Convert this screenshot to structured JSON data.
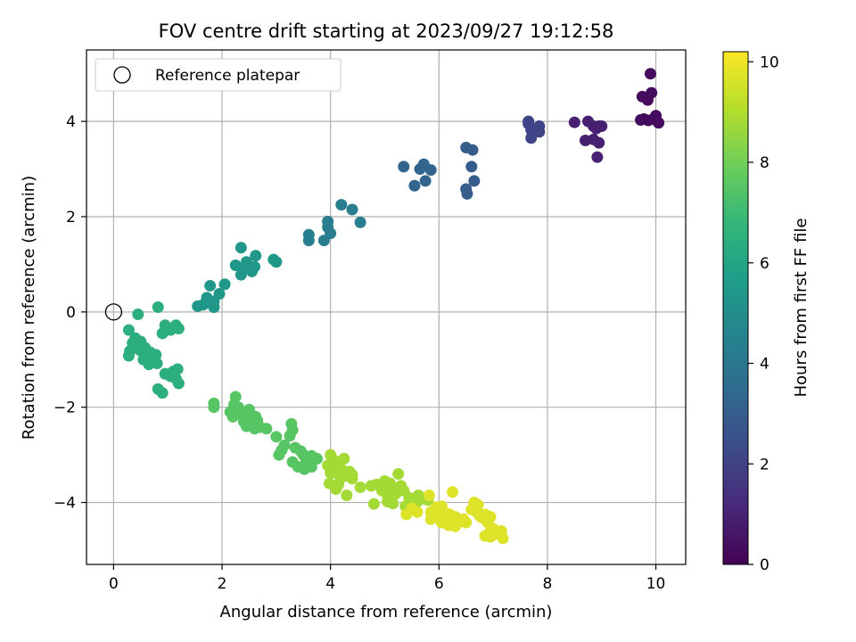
{
  "chart_data": {
    "type": "scatter",
    "title": "FOV centre drift starting at 2023/09/27 19:12:58",
    "xlabel": "Angular distance from reference (arcmin)",
    "ylabel": "Rotation from reference (arcmin)",
    "xlim": [
      -0.5,
      10.55
    ],
    "ylim": [
      -5.3,
      5.5
    ],
    "x_ticks": [
      0,
      2,
      4,
      6,
      8,
      10
    ],
    "y_ticks": [
      -4,
      -2,
      0,
      2,
      4
    ],
    "grid": true,
    "legend": {
      "placement": "top-left",
      "entries": [
        "Reference platepar"
      ]
    },
    "reference": {
      "x": 0,
      "y": 0
    },
    "colorbar": {
      "label": "Hours from first FF file",
      "range": [
        0,
        10.2
      ],
      "ticks": [
        0,
        2,
        4,
        6,
        8,
        10
      ],
      "colormap": "viridis",
      "colors": [
        "#440154",
        "#482878",
        "#3e4989",
        "#31688e",
        "#26828e",
        "#1f9e89",
        "#35b779",
        "#6ece58",
        "#b5de2b",
        "#fde725"
      ]
    },
    "series": [
      {
        "t": 0.3,
        "points": [
          [
            9.9,
            5.0
          ],
          [
            9.75,
            4.52
          ],
          [
            9.92,
            4.6
          ],
          [
            9.85,
            4.45
          ],
          [
            9.78,
            4.05
          ],
          [
            9.86,
            4.02
          ],
          [
            9.95,
            4.05
          ],
          [
            10.0,
            4.12
          ],
          [
            10.05,
            3.97
          ],
          [
            9.72,
            4.03
          ]
        ]
      },
      {
        "t": 0.9,
        "points": [
          [
            8.75,
            4.0
          ],
          [
            8.85,
            3.9
          ],
          [
            8.9,
            3.85
          ],
          [
            8.95,
            3.9
          ],
          [
            9.0,
            3.9
          ],
          [
            8.7,
            3.6
          ],
          [
            8.85,
            3.62
          ],
          [
            8.95,
            3.55
          ],
          [
            8.92,
            3.25
          ],
          [
            8.5,
            3.98
          ]
        ]
      },
      {
        "t": 2.1,
        "points": [
          [
            7.65,
            4.0
          ],
          [
            7.85,
            3.9
          ],
          [
            7.7,
            3.82
          ],
          [
            7.85,
            3.78
          ],
          [
            7.7,
            3.65
          ],
          [
            7.65,
            3.95
          ]
        ]
      },
      {
        "t": 3.0,
        "points": [
          [
            6.5,
            3.45
          ],
          [
            6.62,
            3.4
          ],
          [
            6.6,
            3.05
          ],
          [
            6.65,
            2.75
          ],
          [
            6.5,
            2.58
          ],
          [
            6.52,
            2.48
          ]
        ]
      },
      {
        "t": 3.3,
        "points": [
          [
            5.35,
            3.05
          ],
          [
            5.65,
            3.0
          ],
          [
            5.72,
            3.1
          ],
          [
            5.85,
            2.98
          ],
          [
            5.55,
            2.65
          ],
          [
            5.75,
            2.75
          ]
        ]
      },
      {
        "t": 4.3,
        "points": [
          [
            4.2,
            2.25
          ],
          [
            4.4,
            2.15
          ],
          [
            4.55,
            1.88
          ],
          [
            3.95,
            1.9
          ],
          [
            3.95,
            1.78
          ],
          [
            4.0,
            1.65
          ],
          [
            3.6,
            1.62
          ],
          [
            3.6,
            1.5
          ],
          [
            3.88,
            1.5
          ]
        ]
      },
      {
        "t": 5.4,
        "points": [
          [
            2.35,
            1.35
          ],
          [
            2.62,
            1.18
          ],
          [
            2.95,
            1.1
          ],
          [
            3.0,
            1.05
          ],
          [
            2.45,
            1.05
          ],
          [
            2.25,
            0.98
          ],
          [
            2.6,
            0.95
          ],
          [
            2.4,
            0.9
          ],
          [
            2.55,
            0.85
          ],
          [
            2.35,
            0.78
          ],
          [
            1.78,
            0.55
          ],
          [
            2.05,
            0.58
          ],
          [
            1.95,
            0.38
          ],
          [
            1.72,
            0.3
          ],
          [
            1.85,
            0.22
          ],
          [
            1.65,
            0.15
          ],
          [
            1.55,
            0.12
          ],
          [
            1.85,
            0.1
          ]
        ]
      },
      {
        "t": 6.4,
        "points": [
          [
            0.45,
            -0.05
          ],
          [
            0.82,
            0.1
          ],
          [
            0.95,
            -0.28
          ],
          [
            1.15,
            -0.28
          ],
          [
            1.2,
            -0.35
          ],
          [
            1.05,
            -0.38
          ],
          [
            0.9,
            -0.45
          ],
          [
            0.28,
            -0.38
          ],
          [
            0.4,
            -0.55
          ],
          [
            0.5,
            -0.62
          ],
          [
            0.35,
            -0.65
          ],
          [
            0.58,
            -0.75
          ],
          [
            0.48,
            -0.8
          ],
          [
            0.68,
            -0.85
          ],
          [
            0.3,
            -0.82
          ],
          [
            0.28,
            -0.92
          ],
          [
            0.6,
            -0.95
          ],
          [
            0.78,
            -0.9
          ],
          [
            0.55,
            -1.0
          ],
          [
            0.72,
            -1.02
          ],
          [
            0.8,
            -1.08
          ],
          [
            0.65,
            -1.1
          ],
          [
            1.18,
            -1.2
          ],
          [
            1.1,
            -1.25
          ],
          [
            0.95,
            -1.3
          ],
          [
            1.05,
            -1.35
          ],
          [
            1.15,
            -1.4
          ],
          [
            1.2,
            -1.5
          ],
          [
            0.82,
            -1.62
          ],
          [
            0.9,
            -1.7
          ]
        ]
      },
      {
        "t": 7.5,
        "points": [
          [
            2.25,
            -1.78
          ],
          [
            2.22,
            -1.95
          ],
          [
            1.85,
            -1.92
          ],
          [
            1.85,
            -2.0
          ],
          [
            2.3,
            -2.0
          ],
          [
            2.5,
            -2.05
          ],
          [
            2.15,
            -2.1
          ],
          [
            2.35,
            -2.15
          ],
          [
            2.2,
            -2.2
          ],
          [
            2.62,
            -2.2
          ],
          [
            2.55,
            -2.22
          ],
          [
            2.65,
            -2.28
          ],
          [
            2.4,
            -2.3
          ],
          [
            2.5,
            -2.35
          ],
          [
            2.7,
            -2.42
          ],
          [
            2.6,
            -2.45
          ],
          [
            2.45,
            -2.4
          ],
          [
            2.82,
            -2.45
          ],
          [
            3.0,
            -2.62
          ],
          [
            3.28,
            -2.35
          ],
          [
            3.3,
            -2.48
          ],
          [
            3.25,
            -2.6
          ],
          [
            3.15,
            -2.8
          ],
          [
            3.35,
            -2.85
          ],
          [
            3.45,
            -2.92
          ],
          [
            3.1,
            -2.9
          ],
          [
            3.05,
            -3.0
          ],
          [
            3.5,
            -3.0
          ],
          [
            3.65,
            -3.02
          ],
          [
            3.75,
            -3.08
          ],
          [
            3.3,
            -3.15
          ],
          [
            3.55,
            -3.15
          ],
          [
            3.4,
            -3.25
          ],
          [
            3.65,
            -3.25
          ],
          [
            3.52,
            -3.3
          ]
        ]
      },
      {
        "t": 8.8,
        "points": [
          [
            4.0,
            -3.0
          ],
          [
            4.05,
            -3.1
          ],
          [
            4.25,
            -3.08
          ],
          [
            3.95,
            -3.22
          ],
          [
            4.12,
            -3.25
          ],
          [
            4.2,
            -3.3
          ],
          [
            4.35,
            -3.35
          ],
          [
            4.0,
            -3.38
          ],
          [
            4.15,
            -3.42
          ],
          [
            4.4,
            -3.42
          ],
          [
            4.25,
            -3.45
          ],
          [
            4.4,
            -3.5
          ],
          [
            3.98,
            -3.6
          ],
          [
            4.15,
            -3.62
          ],
          [
            4.1,
            -3.72
          ],
          [
            4.3,
            -3.85
          ],
          [
            4.55,
            -3.68
          ],
          [
            4.75,
            -3.65
          ],
          [
            4.85,
            -3.62
          ],
          [
            5.0,
            -3.55
          ],
          [
            4.95,
            -3.75
          ],
          [
            5.1,
            -3.6
          ],
          [
            5.25,
            -3.4
          ],
          [
            5.15,
            -3.72
          ],
          [
            5.05,
            -3.85
          ],
          [
            5.2,
            -3.82
          ],
          [
            5.3,
            -3.65
          ],
          [
            5.35,
            -3.75
          ],
          [
            5.45,
            -3.9
          ],
          [
            5.05,
            -3.98
          ],
          [
            5.15,
            -4.02
          ],
          [
            4.8,
            -4.03
          ],
          [
            5.38,
            -4.08
          ],
          [
            5.5,
            -4.0
          ],
          [
            5.62,
            -3.85
          ],
          [
            5.6,
            -3.98
          ],
          [
            5.72,
            -3.92
          ],
          [
            5.8,
            -3.95
          ]
        ]
      },
      {
        "t": 9.7,
        "points": [
          [
            5.5,
            -4.12
          ],
          [
            5.4,
            -4.25
          ],
          [
            5.6,
            -4.2
          ],
          [
            5.82,
            -3.85
          ],
          [
            5.95,
            -4.1
          ],
          [
            5.85,
            -4.2
          ],
          [
            6.05,
            -4.08
          ],
          [
            6.1,
            -4.2
          ],
          [
            5.85,
            -4.35
          ],
          [
            6.25,
            -3.78
          ],
          [
            6.0,
            -4.3
          ],
          [
            6.15,
            -4.35
          ],
          [
            6.2,
            -4.25
          ],
          [
            6.3,
            -4.3
          ],
          [
            6.05,
            -4.42
          ],
          [
            6.18,
            -4.48
          ],
          [
            6.3,
            -4.5
          ],
          [
            6.35,
            -4.42
          ],
          [
            6.45,
            -4.35
          ],
          [
            6.5,
            -4.42
          ],
          [
            6.65,
            -4.0
          ],
          [
            6.72,
            -4.05
          ],
          [
            6.6,
            -4.15
          ],
          [
            6.7,
            -4.2
          ],
          [
            6.75,
            -4.28
          ],
          [
            6.85,
            -4.25
          ],
          [
            6.8,
            -4.32
          ],
          [
            6.95,
            -4.3
          ],
          [
            6.9,
            -4.42
          ],
          [
            7.0,
            -4.55
          ],
          [
            6.95,
            -4.6
          ],
          [
            7.05,
            -4.65
          ],
          [
            7.15,
            -4.6
          ],
          [
            7.0,
            -4.68
          ],
          [
            6.85,
            -4.7
          ],
          [
            6.95,
            -4.72
          ],
          [
            7.18,
            -4.75
          ]
        ]
      }
    ]
  }
}
